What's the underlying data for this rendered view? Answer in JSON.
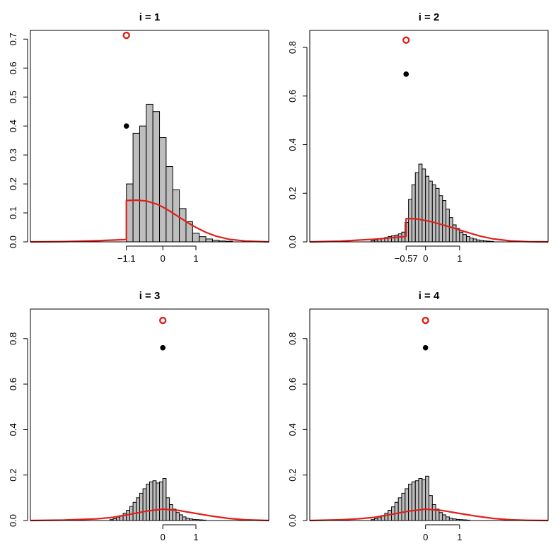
{
  "chart_data": [
    {
      "type": "bar",
      "title": "i = 1",
      "xlim": [
        -4,
        3.2
      ],
      "ylim": [
        0,
        0.73
      ],
      "yticks": [
        0.0,
        0.1,
        0.2,
        0.3,
        0.4,
        0.5,
        0.6,
        0.7
      ],
      "yticklabels": [
        "0.0",
        "0.1",
        "0.2",
        "0.3",
        "0.4",
        "0.5",
        "0.6",
        "0.7"
      ],
      "xticks": [
        -1.1,
        0,
        1
      ],
      "xticklabels": [
        "−1.1",
        "0",
        "1"
      ],
      "histogram": {
        "bin_width": 0.2,
        "start": -1.1,
        "values": [
          0.2,
          0.375,
          0.4,
          0.475,
          0.45,
          0.36,
          0.26,
          0.18,
          0.115,
          0.07,
          0.03,
          0.018,
          0.01,
          0.006,
          0.003,
          0.002
        ]
      },
      "density_curve": {
        "x": [
          -4,
          -3,
          -2,
          -1.5,
          -1.1,
          -1.1,
          -1.0,
          -0.8,
          -0.5,
          -0.2,
          0.0,
          0.2,
          0.5,
          0.8,
          1.0,
          1.3,
          1.6,
          2.0,
          2.5,
          3.2
        ],
        "y": [
          0.0,
          0.001,
          0.004,
          0.006,
          0.008,
          0.143,
          0.143,
          0.144,
          0.141,
          0.131,
          0.12,
          0.107,
          0.085,
          0.063,
          0.05,
          0.033,
          0.02,
          0.009,
          0.003,
          0.0
        ]
      },
      "point_estimates": [
        {
          "label": "red circle",
          "x": -1.1,
          "y": 0.713
        },
        {
          "label": "black dot",
          "x": -1.1,
          "y": 0.4
        }
      ]
    },
    {
      "type": "bar",
      "title": "i = 2",
      "xlim": [
        -3.4,
        3.6
      ],
      "ylim": [
        0,
        0.87
      ],
      "yticks": [
        0.0,
        0.2,
        0.4,
        0.6,
        0.8
      ],
      "yticklabels": [
        "0.0",
        "0.2",
        "0.4",
        "0.6",
        "0.8"
      ],
      "xticks": [
        -0.57,
        0,
        1
      ],
      "xticklabels": [
        "−0.57",
        "0",
        "1"
      ],
      "histogram": {
        "bin_width": 0.1,
        "start": -1.6,
        "values": [
          0.005,
          0.008,
          0.012,
          0.015,
          0.018,
          0.022,
          0.025,
          0.028,
          0.033,
          0.04,
          0.08,
          0.175,
          0.235,
          0.285,
          0.32,
          0.3,
          0.27,
          0.25,
          0.235,
          0.22,
          0.19,
          0.17,
          0.135,
          0.1,
          0.07,
          0.055,
          0.04,
          0.03,
          0.022,
          0.016,
          0.012,
          0.008,
          0.006,
          0.004,
          0.003,
          0.002
        ]
      },
      "density_curve": {
        "x": [
          -3.4,
          -2.5,
          -1.5,
          -1.0,
          -0.6,
          -0.57,
          -0.57,
          -0.4,
          -0.2,
          0.0,
          0.2,
          0.5,
          0.8,
          1.0,
          1.3,
          1.6,
          2.0,
          2.5,
          3.0,
          3.6
        ],
        "y": [
          0.0,
          0.003,
          0.011,
          0.017,
          0.022,
          0.023,
          0.095,
          0.096,
          0.093,
          0.088,
          0.082,
          0.07,
          0.058,
          0.049,
          0.036,
          0.024,
          0.012,
          0.004,
          0.001,
          0.0
        ]
      },
      "point_estimates": [
        {
          "label": "red circle",
          "x": -0.57,
          "y": 0.83
        },
        {
          "label": "black dot",
          "x": -0.57,
          "y": 0.69
        }
      ]
    },
    {
      "type": "bar",
      "title": "i = 3",
      "xlim": [
        -4,
        3.2
      ],
      "ylim": [
        0,
        0.93
      ],
      "yticks": [
        0.0,
        0.2,
        0.4,
        0.6,
        0.8
      ],
      "yticklabels": [
        "0.0",
        "0.2",
        "0.4",
        "0.6",
        "0.8"
      ],
      "xticks": [
        0,
        1
      ],
      "xticklabels": [
        "0",
        "1"
      ],
      "histogram": {
        "bin_width": 0.1,
        "start": -1.6,
        "values": [
          0.004,
          0.008,
          0.015,
          0.022,
          0.032,
          0.045,
          0.062,
          0.08,
          0.1,
          0.12,
          0.14,
          0.16,
          0.17,
          0.175,
          0.165,
          0.17,
          0.185,
          0.1,
          0.07,
          0.05,
          0.035,
          0.025,
          0.016,
          0.01,
          0.007,
          0.005,
          0.004,
          0.003,
          0.002
        ]
      },
      "density_curve": {
        "x": [
          -4,
          -3,
          -2,
          -1.5,
          -1.0,
          -0.5,
          0.0,
          0.5,
          1.0,
          1.5,
          2.0,
          2.5,
          3.2
        ],
        "y": [
          0.0,
          0.002,
          0.007,
          0.014,
          0.027,
          0.041,
          0.05,
          0.044,
          0.031,
          0.019,
          0.009,
          0.003,
          0.0
        ]
      },
      "point_estimates": [
        {
          "label": "red circle",
          "x": 0,
          "y": 0.88
        },
        {
          "label": "black dot",
          "x": 0,
          "y": 0.76
        }
      ]
    },
    {
      "type": "bar",
      "title": "i = 4",
      "xlim": [
        -3.4,
        3.6
      ],
      "ylim": [
        0,
        0.93
      ],
      "yticks": [
        0.0,
        0.2,
        0.4,
        0.6,
        0.8
      ],
      "yticklabels": [
        "0.0",
        "0.2",
        "0.4",
        "0.6",
        "0.8"
      ],
      "xticks": [
        0,
        1
      ],
      "xticklabels": [
        "0",
        "1"
      ],
      "histogram": {
        "bin_width": 0.1,
        "start": -1.6,
        "values": [
          0.004,
          0.008,
          0.015,
          0.022,
          0.032,
          0.045,
          0.06,
          0.08,
          0.1,
          0.12,
          0.14,
          0.16,
          0.17,
          0.175,
          0.185,
          0.18,
          0.195,
          0.11,
          0.07,
          0.05,
          0.035,
          0.025,
          0.016,
          0.01,
          0.007,
          0.005,
          0.004,
          0.003,
          0.002
        ]
      },
      "density_curve": {
        "x": [
          -3.4,
          -2.5,
          -2.0,
          -1.5,
          -1.0,
          -0.5,
          0.0,
          0.5,
          1.0,
          1.5,
          2.0,
          2.5,
          3.0,
          3.6
        ],
        "y": [
          0.0,
          0.003,
          0.007,
          0.014,
          0.027,
          0.041,
          0.05,
          0.044,
          0.031,
          0.019,
          0.009,
          0.003,
          0.001,
          0.0
        ]
      },
      "point_estimates": [
        {
          "label": "red circle",
          "x": 0,
          "y": 0.88
        },
        {
          "label": "black dot",
          "x": 0,
          "y": 0.76
        }
      ]
    }
  ],
  "colors": {
    "bar_fill": "#bebebe",
    "bar_stroke": "#000000",
    "curve": "#e0201b",
    "open_point": "#e0201b",
    "filled_point": "#000000",
    "axis": "#000000"
  }
}
